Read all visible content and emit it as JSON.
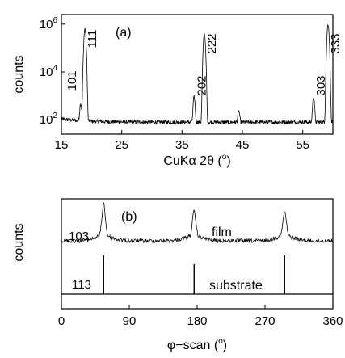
{
  "chart_data": [
    {
      "panel_label": "(a)",
      "type": "line",
      "xlabel_parts": [
        "CuK",
        "α",
        " 2",
        "θ",
        " (",
        "o",
        ")"
      ],
      "ylabel": "counts",
      "xlim": [
        15,
        60
      ],
      "ylim_log10": [
        1.4,
        6.4
      ],
      "yscale": "log",
      "xticks": [
        15,
        25,
        35,
        45,
        55
      ],
      "yticks": [
        {
          "exp": 2,
          "base": "10",
          "sup": "2"
        },
        {
          "exp": 4,
          "base": "10",
          "sup": "4"
        },
        {
          "exp": 6,
          "base": "10",
          "sup": "6"
        }
      ],
      "background_log10": 1.9,
      "peaks": [
        {
          "label": "101",
          "x": 18.2,
          "log10_counts": 2.6
        },
        {
          "label": "111",
          "x": 18.9,
          "log10_counts": 5.8
        },
        {
          "label": "202",
          "x": 37.0,
          "log10_counts": 2.9
        },
        {
          "label": "222",
          "x": 38.7,
          "log10_counts": 5.6
        },
        {
          "label": "",
          "x": 44.4,
          "log10_counts": 2.2
        },
        {
          "label": "303",
          "x": 56.8,
          "log10_counts": 2.9
        },
        {
          "label": "333",
          "x": 59.2,
          "log10_counts": 6.0
        }
      ]
    },
    {
      "panel_label": "(b)",
      "type": "line",
      "xlabel_parts": [
        "φ−scan (",
        "o",
        ")"
      ],
      "ylabel": "counts",
      "xlim": [
        0,
        360
      ],
      "xticks": [
        0,
        90,
        180,
        270,
        360
      ],
      "series": [
        {
          "name": "film",
          "peak_label": "103",
          "peaks_phi": [
            56,
            176,
            296
          ]
        },
        {
          "name": "substrate",
          "peak_label": "113",
          "peaks_phi": [
            56,
            176,
            296
          ]
        }
      ]
    }
  ]
}
